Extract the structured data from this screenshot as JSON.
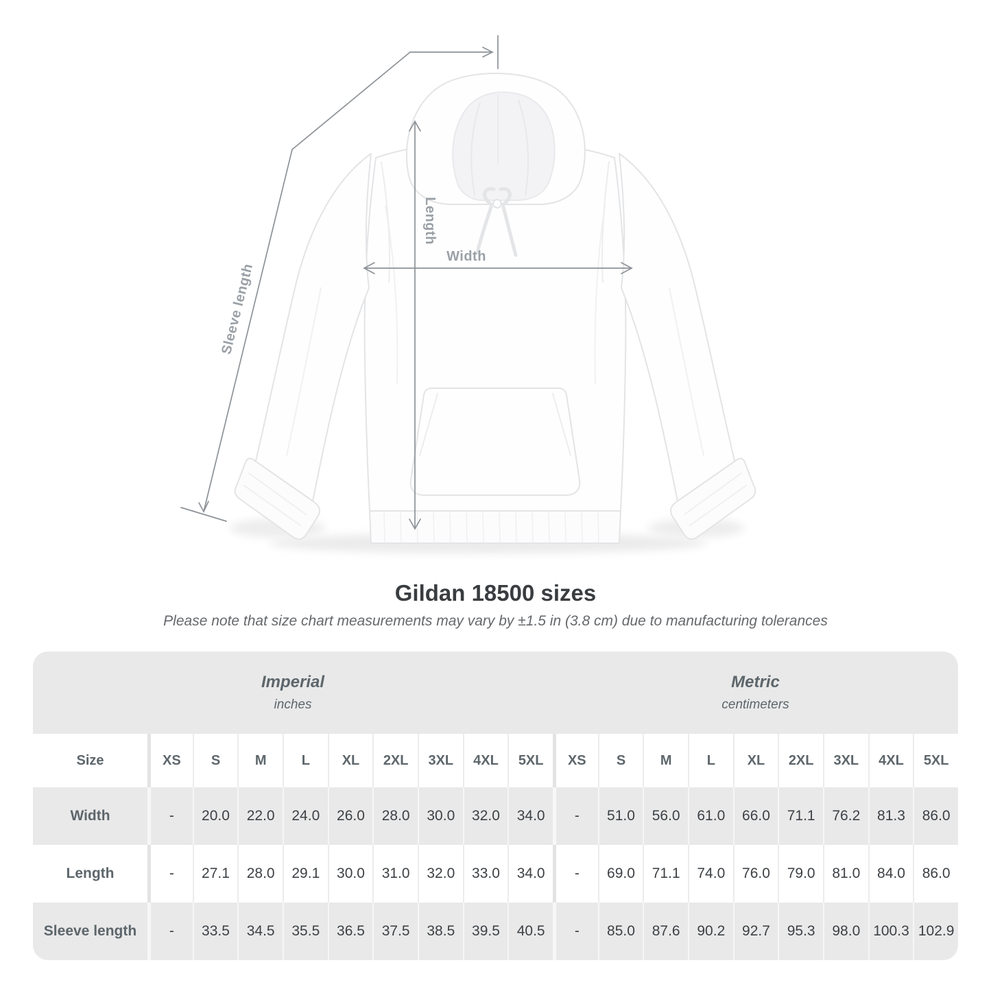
{
  "diagram": {
    "length_label": "Length",
    "width_label": "Width",
    "sleeve_label": "Sleeve length",
    "line_color": "#8d9297",
    "label_color": "#9aa0a6"
  },
  "heading": {
    "title": "Gildan 18500 sizes",
    "subtitle": "Please note that size chart measurements may vary by ±1.5 in (3.8 cm) due to manufacturing tolerances"
  },
  "chart_data": {
    "type": "table",
    "title": "Gildan 18500 sizes",
    "groups": [
      {
        "label": "Imperial",
        "unit": "inches"
      },
      {
        "label": "Metric",
        "unit": "centimeters"
      }
    ],
    "size_column_header": "Size",
    "sizes": [
      "XS",
      "S",
      "M",
      "L",
      "XL",
      "2XL",
      "3XL",
      "4XL",
      "5XL"
    ],
    "rows": [
      {
        "label": "Width",
        "imperial": [
          "-",
          "20.0",
          "22.0",
          "24.0",
          "26.0",
          "28.0",
          "30.0",
          "32.0",
          "34.0"
        ],
        "metric": [
          "-",
          "51.0",
          "56.0",
          "61.0",
          "66.0",
          "71.1",
          "76.2",
          "81.3",
          "86.0"
        ]
      },
      {
        "label": "Length",
        "imperial": [
          "-",
          "27.1",
          "28.0",
          "29.1",
          "30.0",
          "31.0",
          "32.0",
          "33.0",
          "34.0"
        ],
        "metric": [
          "-",
          "69.0",
          "71.1",
          "74.0",
          "76.0",
          "79.0",
          "81.0",
          "84.0",
          "86.0"
        ]
      },
      {
        "label": "Sleeve length",
        "imperial": [
          "-",
          "33.5",
          "34.5",
          "35.5",
          "36.5",
          "37.5",
          "38.5",
          "39.5",
          "40.5"
        ],
        "metric": [
          "-",
          "85.0",
          "87.6",
          "90.2",
          "92.7",
          "95.3",
          "98.0",
          "100.3",
          "102.9"
        ]
      }
    ],
    "colors": {
      "band": "#e9e9e9",
      "row_alt": "#e9e9e9",
      "row": "#ffffff",
      "header_text": "#5d666b",
      "value_text": "#3d4145"
    }
  }
}
